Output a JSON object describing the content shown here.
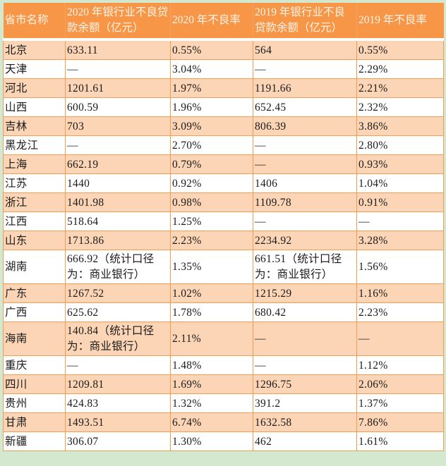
{
  "table": {
    "headers": [
      "省市名称",
      "2020 年银行业不良贷款余额（亿元）",
      "2020 年不良率",
      "2019 年银行业不良贷款余额（亿元）",
      "2019 年不良率"
    ],
    "rows": [
      {
        "province": "北京",
        "npl_2020": "633.11",
        "rate_2020": "0.55%",
        "npl_2019": "564",
        "rate_2019": "0.55%"
      },
      {
        "province": "天津",
        "npl_2020": "—",
        "rate_2020": "3.04%",
        "npl_2019": "—",
        "rate_2019": "2.29%"
      },
      {
        "province": "河北",
        "npl_2020": "1201.61",
        "rate_2020": "1.97%",
        "npl_2019": "1191.66",
        "rate_2019": "2.21%"
      },
      {
        "province": "山西",
        "npl_2020": "600.59",
        "rate_2020": "1.96%",
        "npl_2019": "652.45",
        "rate_2019": "2.32%"
      },
      {
        "province": "吉林",
        "npl_2020": "703",
        "rate_2020": "3.09%",
        "npl_2019": "806.39",
        "rate_2019": "3.86%"
      },
      {
        "province": "黑龙江",
        "npl_2020": "—",
        "rate_2020": "2.70%",
        "npl_2019": "—",
        "rate_2019": "2.80%"
      },
      {
        "province": "上海",
        "npl_2020": "662.19",
        "rate_2020": "0.79%",
        "npl_2019": "—",
        "rate_2019": "0.93%"
      },
      {
        "province": "江苏",
        "npl_2020": "1440",
        "rate_2020": "0.92%",
        "npl_2019": "1406",
        "rate_2019": "1.04%"
      },
      {
        "province": "浙江",
        "npl_2020": "1401.98",
        "rate_2020": "0.98%",
        "npl_2019": "1109.78",
        "rate_2019": "0.91%"
      },
      {
        "province": "江西",
        "npl_2020": "518.64",
        "rate_2020": "1.25%",
        "npl_2019": "—",
        "rate_2019": "—"
      },
      {
        "province": "山东",
        "npl_2020": "1713.86",
        "rate_2020": "2.23%",
        "npl_2019": "2234.92",
        "rate_2019": "3.28%"
      },
      {
        "province": "湖南",
        "npl_2020": "666.92（统计口径为：商业银行）",
        "rate_2020": "1.35%",
        "npl_2019": "661.51（统计口径为：商业银行）",
        "rate_2019": "1.56%"
      },
      {
        "province": "广东",
        "npl_2020": "1267.52",
        "rate_2020": "1.02%",
        "npl_2019": "1215.29",
        "rate_2019": "1.16%"
      },
      {
        "province": "广西",
        "npl_2020": "625.62",
        "rate_2020": "1.78%",
        "npl_2019": "680.42",
        "rate_2019": "2.23%"
      },
      {
        "province": "海南",
        "npl_2020": "140.84（统计口径为：商业银行）",
        "rate_2020": "2.11%",
        "npl_2019": "—",
        "rate_2019": "—"
      },
      {
        "province": "重庆",
        "npl_2020": "—",
        "rate_2020": "1.48%",
        "npl_2019": "—",
        "rate_2019": "1.12%"
      },
      {
        "province": "四川",
        "npl_2020": "1209.81",
        "rate_2020": "1.69%",
        "npl_2019": "1296.75",
        "rate_2019": "2.06%"
      },
      {
        "province": "贵州",
        "npl_2020": "424.83",
        "rate_2020": "1.32%",
        "npl_2019": "391.2",
        "rate_2019": "1.37%"
      },
      {
        "province": "甘肃",
        "npl_2020": "1493.51",
        "rate_2020": "6.74%",
        "npl_2019": "1632.58",
        "rate_2019": "7.86%"
      },
      {
        "province": "新疆",
        "npl_2020": "306.07",
        "rate_2020": "1.30%",
        "npl_2019": "462",
        "rate_2019": "1.61%"
      }
    ]
  },
  "colors": {
    "page_background": "#d3e8cf",
    "header_background": "#f79646",
    "header_text": "#fff4ea",
    "row_odd": "#fbd5b5",
    "row_even": "#ffffff",
    "border": "#f29d55"
  }
}
